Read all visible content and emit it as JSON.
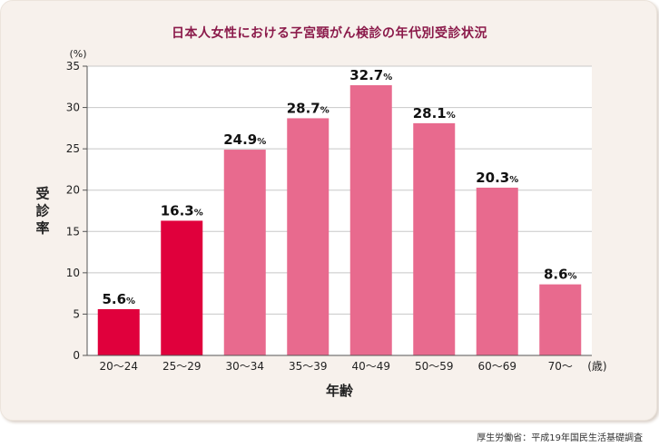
{
  "chart_data": {
    "type": "bar",
    "title": "日本人女性における子宮頸がん検診の年代別受診状況",
    "ylabel": "受診率",
    "xlabel": "年齢",
    "y_unit": "(%)",
    "x_unit": "(歳)",
    "ylim": [
      0,
      35
    ],
    "yticks": [
      0,
      5,
      10,
      15,
      20,
      25,
      30,
      35
    ],
    "grid": true,
    "categories": [
      "20〜24",
      "25〜29",
      "30〜34",
      "35〜39",
      "40〜49",
      "50〜59",
      "60〜69",
      "70〜"
    ],
    "values": [
      5.6,
      16.3,
      24.9,
      28.7,
      32.7,
      28.1,
      20.3,
      8.6
    ],
    "value_suffix": "%",
    "colors": {
      "highlight": "#e0003c",
      "normal": "#e86a8e",
      "grid": "#c8c8c8",
      "axis": "#555555"
    },
    "highlight_indices": [
      0,
      1
    ]
  },
  "source": "厚生労働省：平成19年国民生活基礎調査"
}
